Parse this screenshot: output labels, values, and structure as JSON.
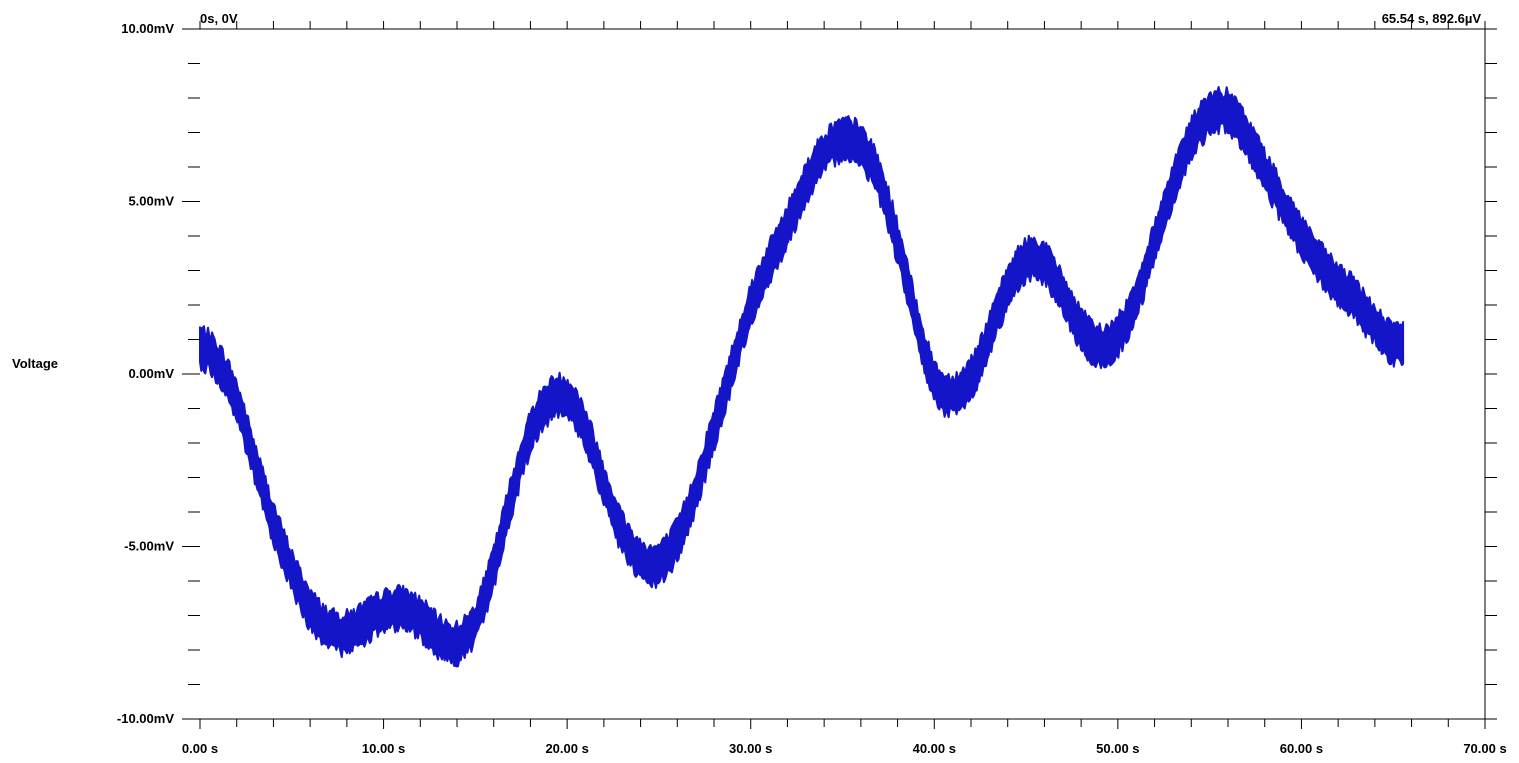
{
  "chart_data": {
    "type": "line",
    "title": "",
    "xlabel": "",
    "ylabel": "Voltage",
    "xlim": [
      0,
      70
    ],
    "ylim": [
      -10,
      10
    ],
    "x_ticks": [
      {
        "value": 0,
        "label": "0.00 s"
      },
      {
        "value": 10,
        "label": "10.00 s"
      },
      {
        "value": 20,
        "label": "20.00 s"
      },
      {
        "value": 30,
        "label": "30.00 s"
      },
      {
        "value": 40,
        "label": "40.00 s"
      },
      {
        "value": 50,
        "label": "50.00 s"
      },
      {
        "value": 60,
        "label": "60.00 s"
      },
      {
        "value": 70,
        "label": "70.00 s"
      }
    ],
    "y_ticks": [
      {
        "value": 10,
        "label": "10.00mV"
      },
      {
        "value": 5,
        "label": "5.00mV"
      },
      {
        "value": 0,
        "label": "0.00mV"
      },
      {
        "value": -5,
        "label": "-5.00mV"
      },
      {
        "value": -10,
        "label": "-10.00mV"
      }
    ],
    "start_readout": "0s, 0V",
    "end_readout": "65.54 s, 892.6µV",
    "grid": false,
    "series_color": "#1414c8",
    "band_half_width_mV": 0.45,
    "series": [
      {
        "x": [
          0,
          1,
          2,
          3,
          4,
          5,
          6,
          7,
          8,
          9,
          10,
          11,
          12,
          13,
          14,
          15,
          16,
          17,
          18,
          19,
          20,
          21,
          22,
          23,
          24,
          25,
          26,
          27,
          28,
          29,
          30,
          31,
          32,
          33,
          34,
          35,
          36,
          37,
          38,
          39,
          40,
          41,
          42,
          43,
          44,
          45,
          46,
          47,
          48,
          49,
          50,
          51,
          52,
          53,
          54,
          55,
          56,
          57,
          58,
          59,
          60,
          61,
          62,
          63,
          64,
          65,
          65.54
        ],
        "values": [
          0.8,
          0.3,
          -0.8,
          -2.6,
          -4.3,
          -5.7,
          -6.8,
          -7.4,
          -7.5,
          -7.2,
          -6.9,
          -6.8,
          -7.1,
          -7.6,
          -7.8,
          -7.2,
          -5.6,
          -3.5,
          -1.7,
          -0.8,
          -0.7,
          -1.6,
          -3.2,
          -4.6,
          -5.4,
          -5.5,
          -4.8,
          -3.4,
          -1.6,
          0.2,
          2.0,
          3.2,
          4.3,
          5.5,
          6.4,
          6.8,
          6.6,
          5.6,
          3.8,
          1.6,
          -0.2,
          -0.6,
          -0.1,
          1.1,
          2.5,
          3.3,
          3.2,
          2.3,
          1.3,
          0.8,
          1.1,
          2.2,
          3.8,
          5.5,
          6.8,
          7.5,
          7.6,
          6.9,
          5.9,
          4.9,
          4.0,
          3.2,
          2.6,
          2.1,
          1.4,
          0.9,
          0.9
        ]
      }
    ]
  }
}
